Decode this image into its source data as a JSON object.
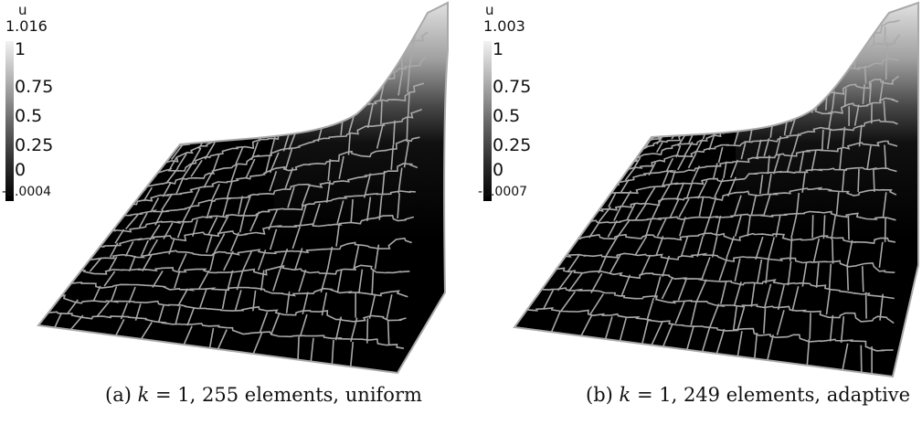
{
  "panels": [
    {
      "label": "(a)",
      "k": "1",
      "caption_rest": ", 255 elements, uniform",
      "colorbar": {
        "title": "u",
        "max": "1.016",
        "min": "-0.0004",
        "ticks": [
          "1",
          "0.75",
          "0.5",
          "0.25",
          "0"
        ]
      }
    },
    {
      "label": "(b)",
      "k": "1",
      "caption_rest": ", 249 elements, adaptive",
      "colorbar": {
        "title": "u",
        "max": "1.003",
        "min": "-0.0007",
        "ticks": [
          "1",
          "0.75",
          "0.5",
          "0.25",
          "0"
        ]
      }
    }
  ],
  "colors": {
    "mesh_edge": "#a9a9a9",
    "surface_low": "#000000",
    "surface_high": "#d8d8d8"
  }
}
